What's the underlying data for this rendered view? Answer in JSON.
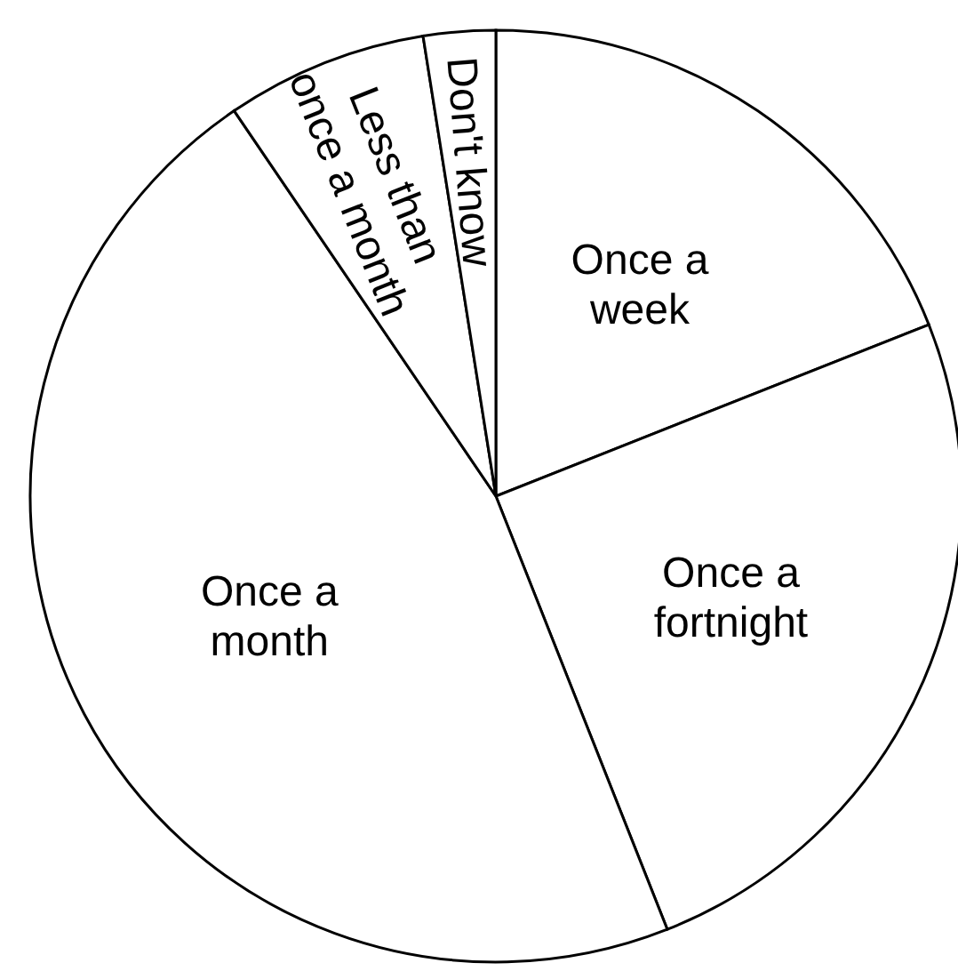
{
  "chart_data": {
    "type": "pie",
    "categories": [
      "Once a week",
      "Once a fortnight",
      "Once a month",
      "Less than once a month",
      "Don't know"
    ],
    "values": [
      19,
      25,
      46.5,
      7,
      2.5
    ],
    "colors": [
      "#ffffff",
      "#ffffff",
      "#ffffff",
      "#ffffff",
      "#ffffff"
    ]
  }
}
